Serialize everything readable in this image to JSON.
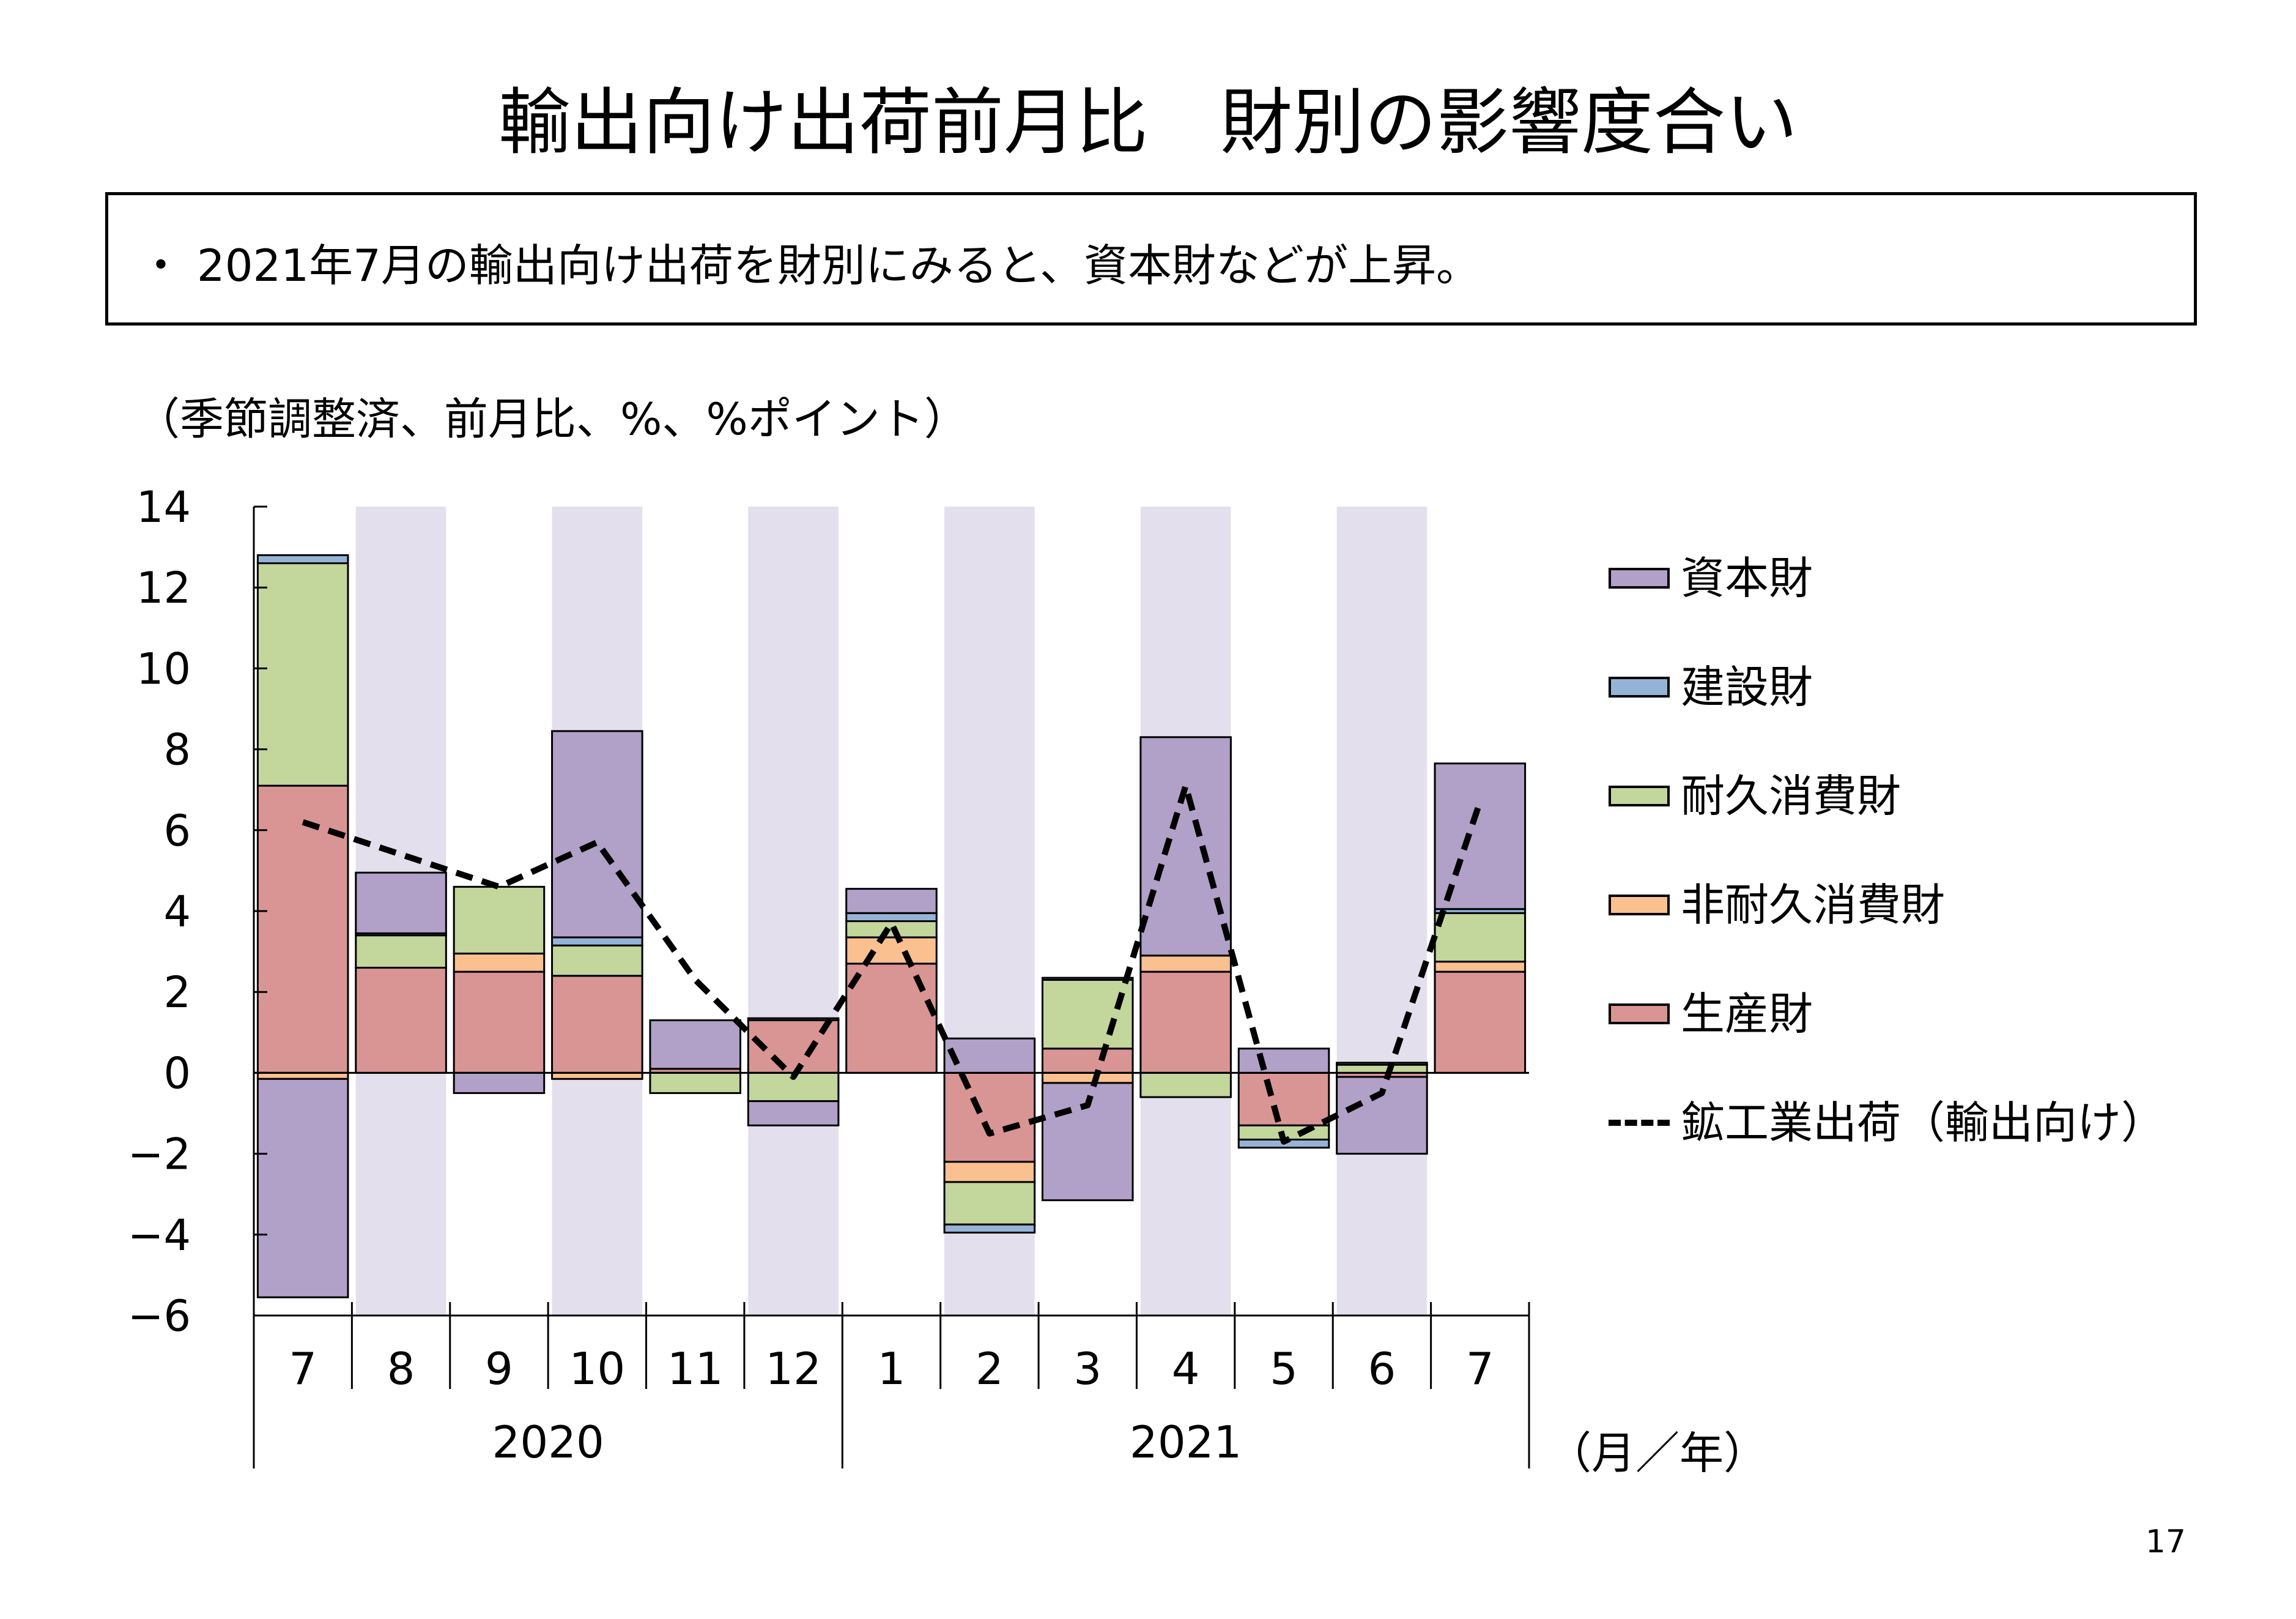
{
  "page": {
    "title": "輸出向け出荷前月比　財別の影響度合い",
    "summary": "・ 2021年7月の輸出向け出荷を財別にみると、資本財などが上昇。",
    "units_note": "（季節調整済、前月比、%、%ポイント）",
    "page_number": "17"
  },
  "chart_data": {
    "type": "bar",
    "stacked": true,
    "categories": [
      "7",
      "8",
      "9",
      "10",
      "11",
      "12",
      "1",
      "2",
      "3",
      "4",
      "5",
      "6",
      "7"
    ],
    "year_groups": [
      {
        "label": "2020",
        "span": 6
      },
      {
        "label": "2021",
        "span": 7
      }
    ],
    "xlabel": "（月／年）",
    "ylim": [
      -6,
      14
    ],
    "yticks": [
      "14",
      "12",
      "10",
      "8",
      "6",
      "4",
      "2",
      "0",
      "−2",
      "−4",
      "−6"
    ],
    "ytick_values": [
      14,
      12,
      10,
      8,
      6,
      4,
      2,
      0,
      -2,
      -4,
      -6
    ],
    "shaded_columns": [
      1,
      3,
      5,
      7,
      9,
      11
    ],
    "shade_color": "#e3dfec",
    "series": [
      {
        "name": "生産財",
        "color": "#d99594",
        "values": [
          7.1,
          2.6,
          2.5,
          2.4,
          0.1,
          1.3,
          2.7,
          -2.2,
          0.6,
          2.5,
          -1.3,
          -0.1,
          2.5
        ]
      },
      {
        "name": "非耐久消費財",
        "color": "#fac08f",
        "values": [
          -0.15,
          0.0,
          0.45,
          -0.15,
          0.0,
          0.0,
          0.65,
          -0.5,
          -0.25,
          0.4,
          0.0,
          0.0,
          0.25
        ]
      },
      {
        "name": "耐久消費財",
        "color": "#c3d69b",
        "values": [
          5.5,
          0.8,
          1.65,
          0.75,
          -0.5,
          -0.7,
          0.4,
          -1.05,
          1.7,
          -0.6,
          -0.35,
          0.2,
          1.2
        ]
      },
      {
        "name": "建設財",
        "color": "#95b3d7",
        "values": [
          0.2,
          0.05,
          0.0,
          0.2,
          0.0,
          0.05,
          0.2,
          -0.2,
          0.05,
          0.0,
          -0.2,
          0.05,
          0.1
        ]
      },
      {
        "name": "資本財",
        "color": "#b1a0c7",
        "values": [
          -5.4,
          1.5,
          -0.5,
          5.1,
          1.2,
          -0.6,
          0.6,
          0.85,
          -2.9,
          5.4,
          0.6,
          -1.9,
          3.6
        ]
      }
    ],
    "legend_order": [
      "資本財",
      "建設財",
      "耐久消費財",
      "非耐久消費財",
      "生産財"
    ],
    "line": {
      "name": "鉱工業出荷（輸出向け）",
      "style": "dashed",
      "color": "#000000",
      "values": [
        6.2,
        5.4,
        4.6,
        5.7,
        2.3,
        -0.1,
        3.7,
        -1.5,
        -0.8,
        7.1,
        -1.7,
        -0.5,
        6.7
      ]
    }
  }
}
